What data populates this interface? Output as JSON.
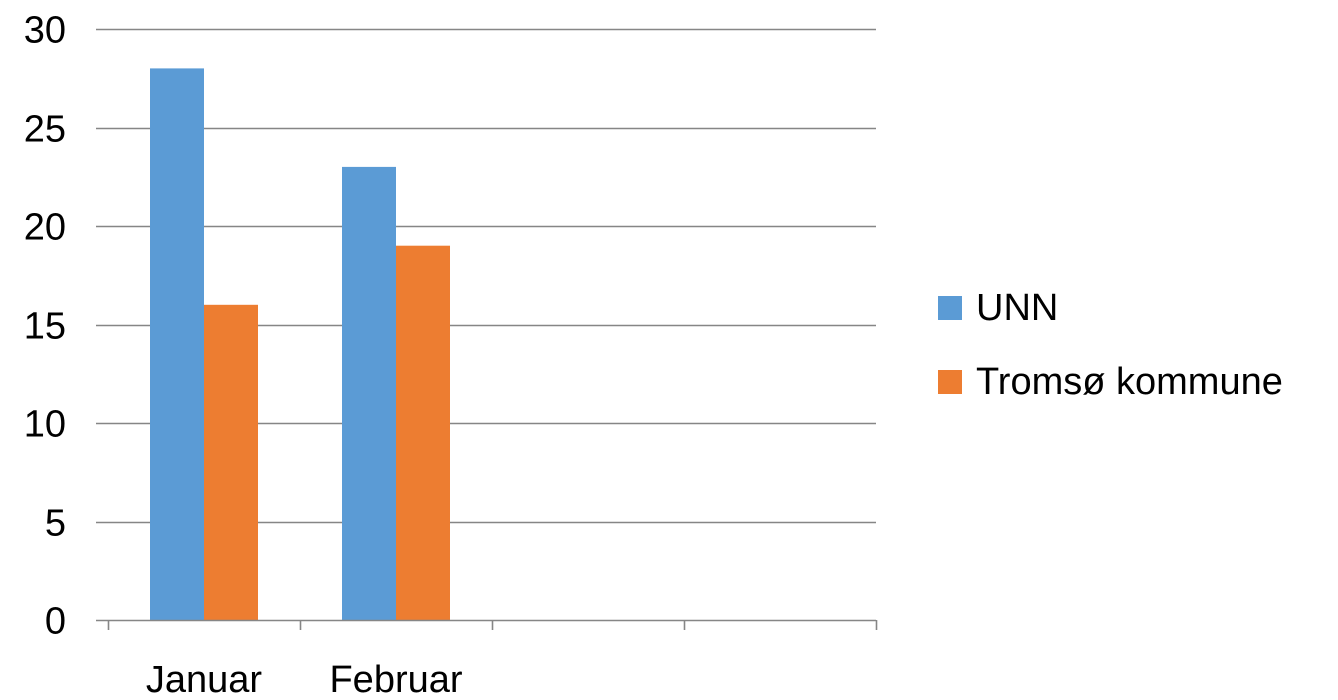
{
  "chart_data": {
    "type": "bar",
    "categories": [
      "Januar",
      "Februar",
      "",
      ""
    ],
    "series": [
      {
        "name": "UNN",
        "values": [
          28,
          23,
          null,
          null
        ],
        "color": "#5b9bd5"
      },
      {
        "name": "Tromsø kommune",
        "values": [
          16,
          19,
          null,
          null
        ],
        "color": "#ed7d31"
      }
    ],
    "title": "",
    "xlabel": "",
    "ylabel": "",
    "ylim": [
      0,
      30
    ],
    "yticks": [
      0,
      5,
      10,
      15,
      20,
      25,
      30
    ],
    "grid": true,
    "gridline_color": "#868686",
    "legend_position": "right"
  }
}
